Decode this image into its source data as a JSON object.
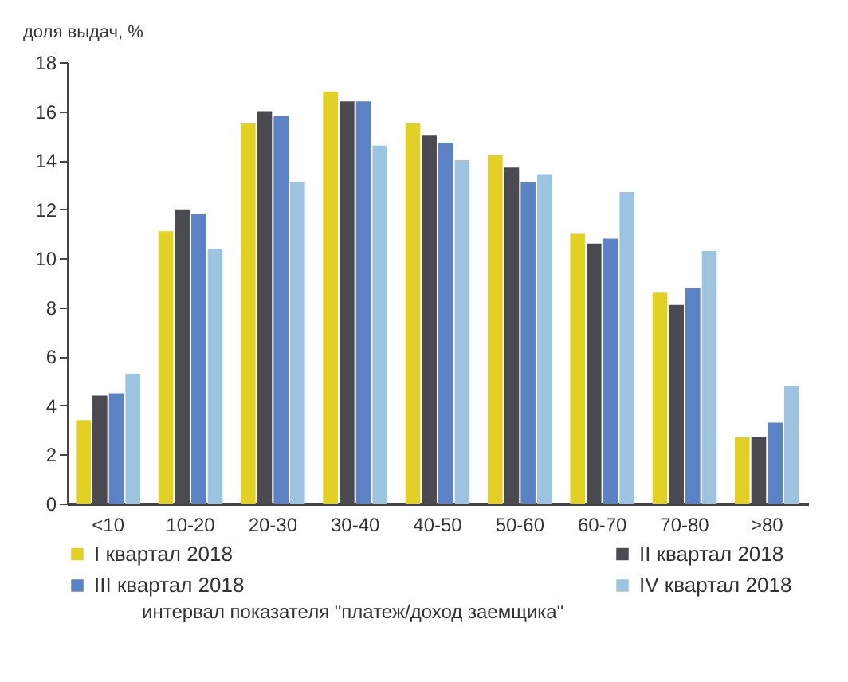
{
  "chart_data": {
    "type": "bar",
    "ylabel": "доля выдач, %",
    "xlabel": "интервал показателя \"платеж/доход заемщика\"",
    "categories": [
      "<10",
      "10-20",
      "20-30",
      "30-40",
      "40-50",
      "50-60",
      "60-70",
      "70-80",
      ">80"
    ],
    "series": [
      {
        "name": "I квартал 2018",
        "color": "#e3d024",
        "values": [
          3.4,
          11.1,
          15.5,
          16.8,
          15.5,
          14.2,
          11.0,
          8.6,
          2.7
        ]
      },
      {
        "name": "II квартал 2018",
        "color": "#4a4a50",
        "values": [
          4.4,
          12.0,
          16.0,
          16.4,
          15.0,
          13.7,
          10.6,
          8.1,
          2.7
        ]
      },
      {
        "name": "III квартал 2018",
        "color": "#5b82c4",
        "values": [
          4.5,
          11.8,
          15.8,
          16.4,
          14.7,
          13.1,
          10.8,
          8.8,
          3.3
        ]
      },
      {
        "name": "IV квартал 2018",
        "color": "#9cc3e0",
        "values": [
          5.3,
          10.4,
          13.1,
          14.6,
          14.0,
          13.4,
          12.7,
          10.3,
          4.8
        ]
      }
    ],
    "ylim": [
      0,
      18
    ],
    "yticks": [
      0,
      2,
      4,
      6,
      8,
      10,
      12,
      14,
      16,
      18
    ],
    "grid": false,
    "legend": "bottom"
  }
}
